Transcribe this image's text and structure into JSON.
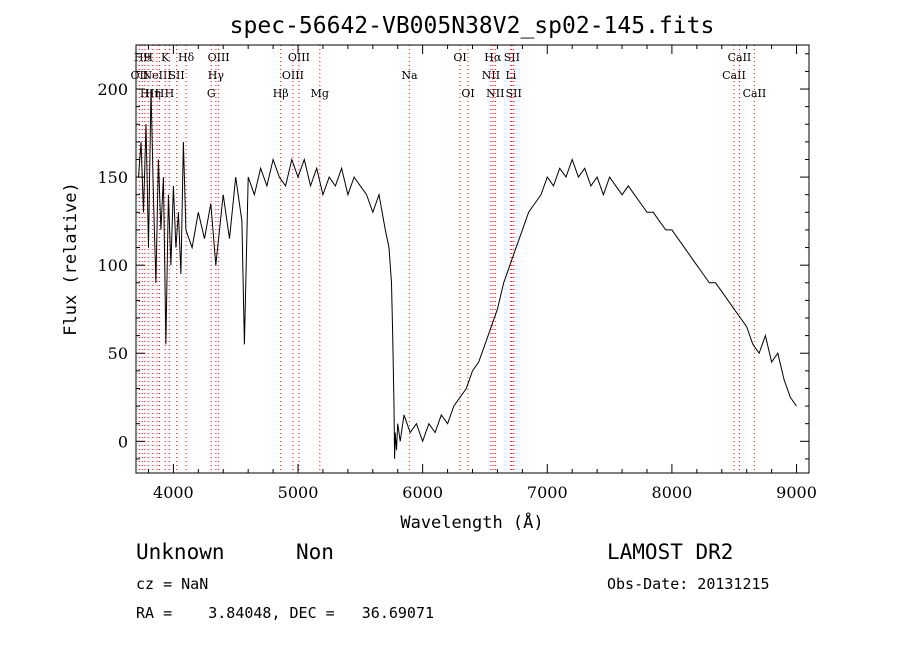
{
  "chart_data": {
    "type": "line",
    "title": "spec-56642-VB005N38V2_sp02-145.fits",
    "xlabel": "Wavelength (Å)",
    "ylabel": "Flux (relative)",
    "xlim": [
      3700,
      9100
    ],
    "ylim": [
      -18,
      225
    ],
    "x_ticks": [
      4000,
      5000,
      6000,
      7000,
      8000,
      9000
    ],
    "y_ticks": [
      0,
      50,
      100,
      150,
      200
    ],
    "grid": false,
    "line_color": "#000000",
    "marker_color": "#ff0000",
    "series": [
      {
        "x": [
          3720,
          3740,
          3760,
          3780,
          3800,
          3820,
          3840,
          3860,
          3880,
          3900,
          3920,
          3940,
          3960,
          3980,
          4000,
          4020,
          4040,
          4060,
          4080,
          4100,
          4150,
          4200,
          4250,
          4300,
          4340,
          4400,
          4450,
          4500,
          4550,
          4570,
          4600,
          4650,
          4700,
          4750,
          4800,
          4850,
          4900,
          4950,
          5000,
          5050,
          5100,
          5150,
          5200,
          5250,
          5300,
          5350,
          5400,
          5450,
          5500,
          5550,
          5600,
          5650,
          5700,
          5730,
          5750,
          5760,
          5770,
          5775,
          5780,
          5790,
          5800,
          5820,
          5850,
          5900,
          5950,
          6000,
          6050,
          6100,
          6150,
          6200,
          6250,
          6300,
          6350,
          6400,
          6450,
          6500,
          6550,
          6600,
          6650,
          6700,
          6750,
          6800,
          6850,
          6900,
          6950,
          7000,
          7050,
          7100,
          7150,
          7200,
          7250,
          7300,
          7350,
          7400,
          7450,
          7500,
          7550,
          7600,
          7650,
          7700,
          7750,
          7800,
          7850,
          7900,
          7950,
          8000,
          8050,
          8100,
          8150,
          8200,
          8250,
          8300,
          8350,
          8400,
          8450,
          8500,
          8550,
          8600,
          8650,
          8700,
          8750,
          8800,
          8850,
          8900,
          8950,
          9000
        ],
        "y": [
          150,
          170,
          130,
          180,
          110,
          200,
          140,
          90,
          160,
          120,
          150,
          55,
          140,
          100,
          145,
          110,
          130,
          95,
          170,
          120,
          110,
          130,
          115,
          135,
          100,
          140,
          115,
          150,
          125,
          55,
          150,
          140,
          155,
          145,
          160,
          150,
          145,
          160,
          150,
          160,
          145,
          155,
          140,
          150,
          145,
          155,
          140,
          150,
          145,
          140,
          130,
          140,
          120,
          110,
          90,
          60,
          20,
          -10,
          5,
          -5,
          10,
          0,
          15,
          5,
          10,
          0,
          10,
          5,
          15,
          10,
          20,
          25,
          30,
          40,
          45,
          55,
          65,
          75,
          90,
          100,
          110,
          120,
          130,
          135,
          140,
          150,
          145,
          155,
          150,
          160,
          150,
          155,
          145,
          150,
          140,
          150,
          145,
          140,
          145,
          140,
          135,
          130,
          130,
          125,
          120,
          120,
          115,
          110,
          105,
          100,
          95,
          90,
          90,
          85,
          80,
          75,
          70,
          65,
          55,
          50,
          60,
          45,
          50,
          35,
          25,
          20
        ]
      }
    ],
    "line_markers": [
      {
        "wavelength": 3727,
        "label": "OII",
        "row": 1
      },
      {
        "wavelength": 3750,
        "label": "H9",
        "row": 0
      },
      {
        "wavelength": 3771,
        "label": "H",
        "row": 2
      },
      {
        "wavelength": 3798,
        "label": "H",
        "row": 0
      },
      {
        "wavelength": 3835,
        "label": "Hη",
        "row": 2
      },
      {
        "wavelength": 3869,
        "label": "NeIII",
        "row": 1
      },
      {
        "wavelength": 3889,
        "label": "H",
        "row": 2
      },
      {
        "wavelength": 3934,
        "label": "K",
        "row": 0
      },
      {
        "wavelength": 3968,
        "label": "H",
        "row": 2
      },
      {
        "wavelength": 4026,
        "label": "SII",
        "row": 1
      },
      {
        "wavelength": 4102,
        "label": "Hδ",
        "row": 0
      },
      {
        "wavelength": 4304,
        "label": "G",
        "row": 2
      },
      {
        "wavelength": 4341,
        "label": "Hγ",
        "row": 1
      },
      {
        "wavelength": 4363,
        "label": "OIII",
        "row": 0
      },
      {
        "wavelength": 4861,
        "label": "Hβ",
        "row": 2
      },
      {
        "wavelength": 4959,
        "label": "OIII",
        "row": 1
      },
      {
        "wavelength": 5007,
        "label": "OIII",
        "row": 0
      },
      {
        "wavelength": 5175,
        "label": "Mg",
        "row": 2
      },
      {
        "wavelength": 5894,
        "label": "Na",
        "row": 1
      },
      {
        "wavelength": 6300,
        "label": "OI",
        "row": 0
      },
      {
        "wavelength": 6364,
        "label": "OI",
        "row": 2
      },
      {
        "wavelength": 6548,
        "label": "NII",
        "row": 1
      },
      {
        "wavelength": 6563,
        "label": "Hα",
        "row": 0
      },
      {
        "wavelength": 6583,
        "label": "NII",
        "row": 2
      },
      {
        "wavelength": 6708,
        "label": "Li",
        "row": 1
      },
      {
        "wavelength": 6716,
        "label": "SII",
        "row": 0
      },
      {
        "wavelength": 6731,
        "label": "SII",
        "row": 2
      },
      {
        "wavelength": 8498,
        "label": "CaII",
        "row": 1
      },
      {
        "wavelength": 8542,
        "label": "CaII",
        "row": 0
      },
      {
        "wavelength": 8662,
        "label": "CaII",
        "row": 2
      }
    ]
  },
  "info": {
    "class": "Unknown",
    "subclass": "Non",
    "cz": "cz = NaN",
    "coords": "RA =    3.84048, DEC =   36.69071",
    "survey": "LAMOST DR2",
    "obs_date": "Obs-Date: 20131215"
  }
}
